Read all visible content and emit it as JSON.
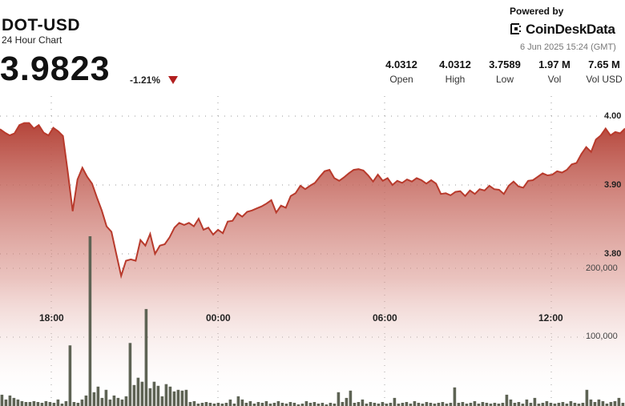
{
  "header": {
    "pair": "DOT-USD",
    "subtitle": "24 Hour Chart",
    "price": "3.9823",
    "change": "-1.21%",
    "powered_by": "Powered by",
    "brand": "CoinDeskData",
    "timestamp": "6 Jun 2025 15:24 (GMT)",
    "stats": [
      {
        "value": "4.0312",
        "label": "Open"
      },
      {
        "value": "4.0312",
        "label": "High"
      },
      {
        "value": "3.7589",
        "label": "Low"
      },
      {
        "value": "1.97 M",
        "label": "Vol"
      },
      {
        "value": "7.65 M",
        "label": "Vol USD"
      }
    ]
  },
  "colors": {
    "line": "#b83a2c",
    "fill_top": "#b5453a",
    "fill_bottom": "#ffffff",
    "volume_bar": "#5e6354",
    "down": "#b21f1f"
  },
  "chart_data": {
    "type": "area",
    "title": "24 Hour Chart",
    "x_ticks": [
      "18:00",
      "00:00",
      "06:00",
      "12:00"
    ],
    "y_ticks": [
      "4.00",
      "3.90",
      "3.80"
    ],
    "ylim": [
      3.735,
      4.02
    ],
    "volume_ticks": [
      "200,000",
      "100,000"
    ],
    "volume_ylim": [
      0,
      340000
    ],
    "price": [
      3.981,
      3.976,
      3.972,
      3.975,
      3.987,
      3.99,
      3.99,
      3.982,
      3.987,
      3.976,
      3.972,
      3.983,
      3.978,
      3.971,
      3.918,
      3.862,
      3.908,
      3.925,
      3.912,
      3.902,
      3.882,
      3.863,
      3.84,
      3.832,
      3.8,
      3.768,
      3.79,
      3.792,
      3.79,
      3.82,
      3.812,
      3.829,
      3.8,
      3.812,
      3.814,
      3.824,
      3.838,
      3.845,
      3.842,
      3.845,
      3.84,
      3.851,
      3.835,
      3.838,
      3.828,
      3.835,
      3.83,
      3.847,
      3.848,
      3.859,
      3.854,
      3.861,
      3.863,
      3.866,
      3.869,
      3.873,
      3.878,
      3.86,
      3.87,
      3.867,
      3.884,
      3.888,
      3.899,
      3.894,
      3.899,
      3.903,
      3.912,
      3.92,
      3.922,
      3.91,
      3.906,
      3.911,
      3.917,
      3.922,
      3.923,
      3.921,
      3.914,
      3.905,
      3.915,
      3.906,
      3.91,
      3.9,
      3.906,
      3.903,
      3.908,
      3.905,
      3.91,
      3.907,
      3.902,
      3.907,
      3.902,
      3.887,
      3.888,
      3.885,
      3.89,
      3.891,
      3.884,
      3.892,
      3.887,
      3.894,
      3.892,
      3.899,
      3.894,
      3.893,
      3.887,
      3.899,
      3.905,
      3.898,
      3.896,
      3.906,
      3.907,
      3.912,
      3.917,
      3.914,
      3.915,
      3.92,
      3.918,
      3.922,
      3.93,
      3.932,
      3.945,
      3.955,
      3.948,
      3.966,
      3.972,
      3.982,
      3.972,
      3.977,
      3.975,
      3.982
    ],
    "volume": [
      14000,
      8000,
      13000,
      10000,
      8000,
      6000,
      5000,
      5000,
      6000,
      5000,
      4000,
      6000,
      5000,
      4000,
      8000,
      3000,
      6000,
      75000,
      5000,
      4000,
      8000,
      13000,
      210000,
      17000,
      24000,
      10000,
      20000,
      8000,
      13000,
      10000,
      8000,
      12000,
      78000,
      26000,
      35000,
      30000,
      120000,
      22000,
      30000,
      25000,
      12000,
      27000,
      24000,
      18000,
      20000,
      19000,
      20000,
      5000,
      6000,
      3000,
      4000,
      5000,
      4000,
      3000,
      4000,
      3000,
      4000,
      8000,
      3000,
      12000,
      8000,
      4000,
      6000,
      3000,
      5000,
      4000,
      6000,
      3000,
      4000,
      6000,
      4000,
      3000,
      5000,
      4000,
      2000,
      3000,
      6000,
      4000,
      5000,
      3000,
      4000,
      2000,
      4000,
      3000,
      17000,
      5000,
      10000,
      19000,
      4000,
      5000,
      8000,
      3000,
      5000,
      4000,
      3000,
      5000,
      3000,
      4000,
      10000,
      3000,
      4000,
      5000,
      3000,
      6000,
      4000,
      3000,
      5000,
      4000,
      3000,
      4000,
      5000,
      3000,
      4000,
      23000,
      4000,
      5000,
      3000,
      4000,
      6000,
      3000,
      5000,
      4000,
      3000,
      4000,
      3000,
      4000,
      14000,
      8000,
      4000,
      5000,
      3000,
      8000,
      4000,
      10000,
      3000,
      4000,
      6000,
      4000,
      3000,
      4000,
      5000,
      3000,
      6000,
      4000,
      3000,
      4000,
      20000,
      8000,
      5000,
      8000,
      6000,
      3000,
      5000,
      6000,
      10000,
      4000
    ]
  }
}
